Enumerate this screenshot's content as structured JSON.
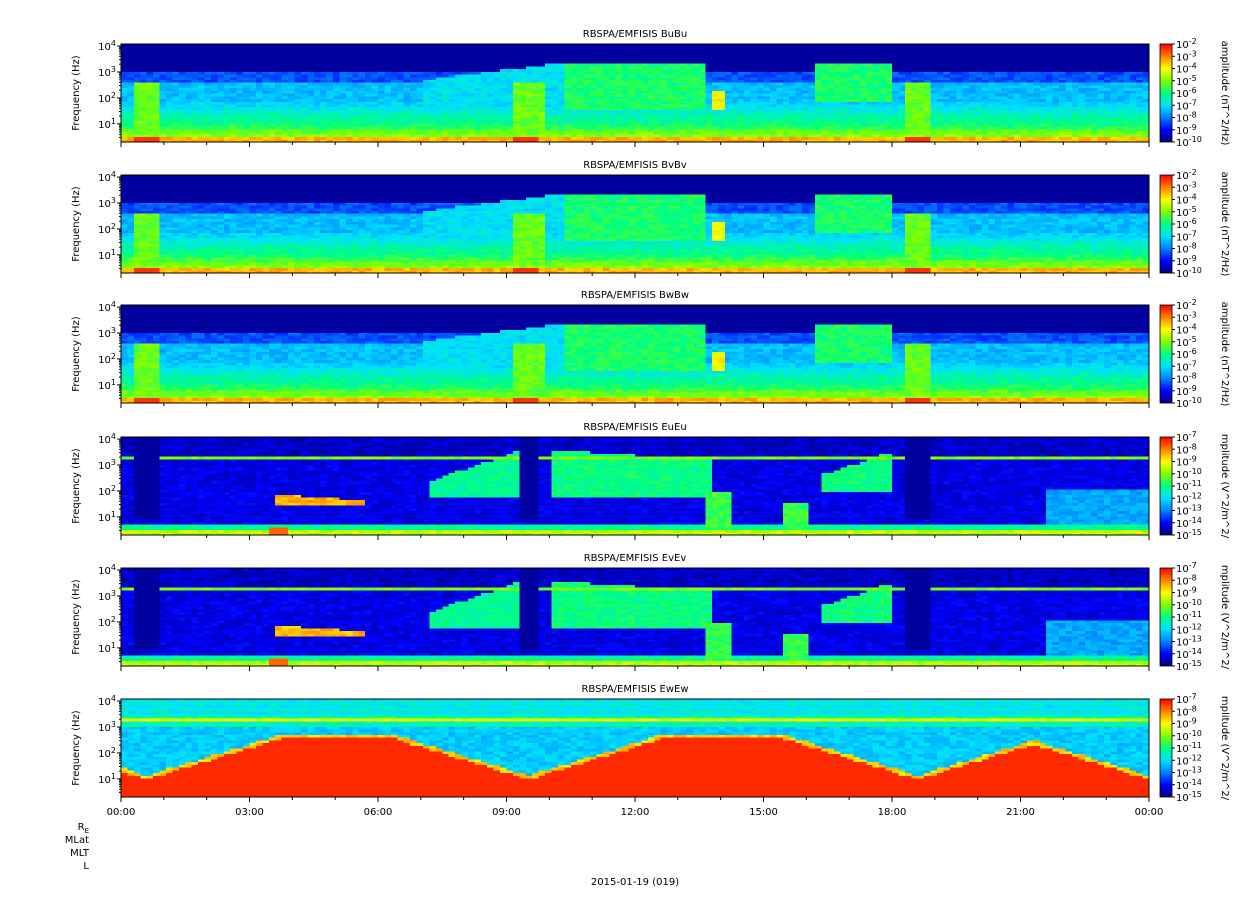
{
  "chart_data": {
    "type": "heatmap",
    "date_label": "2015-01-19 (019)",
    "x_axis": {
      "ticks": [
        "00:00",
        "03:00",
        "06:00",
        "09:00",
        "12:00",
        "15:00",
        "18:00",
        "21:00",
        "00:00"
      ],
      "range_hours": [
        0,
        24
      ]
    },
    "ephemeris_labels": [
      "RE",
      "MLat",
      "MLT",
      "L"
    ],
    "colormap": [
      "#000080",
      "#0000ff",
      "#0080ff",
      "#00e0ff",
      "#00ff80",
      "#80ff00",
      "#ffff00",
      "#ff8000",
      "#ff0000"
    ],
    "panels": [
      {
        "title": "RBSPA/EMFISIS  BuBu",
        "ylabel": "Frequency (Hz)",
        "yscale": "log",
        "ylim": [
          2,
          12000
        ],
        "yticks": [
          "10^1",
          "10^2",
          "10^3",
          "10^4"
        ],
        "colorbar_label": "amplitude (nT^2/Hz)",
        "colorbar_ticks": [
          "10^-2",
          "10^-3",
          "10^-4",
          "10^-5",
          "10^-6",
          "10^-7",
          "10^-8",
          "10^-9",
          "10^-10"
        ],
        "kind": "B"
      },
      {
        "title": "RBSPA/EMFISIS  BvBv",
        "ylabel": "Frequency (Hz)",
        "yscale": "log",
        "ylim": [
          2,
          12000
        ],
        "yticks": [
          "10^1",
          "10^2",
          "10^3",
          "10^4"
        ],
        "colorbar_label": "amplitude (nT^2/Hz)",
        "colorbar_ticks": [
          "10^-2",
          "10^-3",
          "10^-4",
          "10^-5",
          "10^-6",
          "10^-7",
          "10^-8",
          "10^-9",
          "10^-10"
        ],
        "kind": "B"
      },
      {
        "title": "RBSPA/EMFISIS  BwBw",
        "ylabel": "Frequency (Hz)",
        "yscale": "log",
        "ylim": [
          2,
          12000
        ],
        "yticks": [
          "10^1",
          "10^2",
          "10^3",
          "10^4"
        ],
        "colorbar_label": "amplitude (nT^2/Hz)",
        "colorbar_ticks": [
          "10^-2",
          "10^-3",
          "10^-4",
          "10^-5",
          "10^-6",
          "10^-7",
          "10^-8",
          "10^-9",
          "10^-10"
        ],
        "kind": "B"
      },
      {
        "title": "RBSPA/EMFISIS  EuEu",
        "ylabel": "Frequency (Hz)",
        "yscale": "log",
        "ylim": [
          2,
          12000
        ],
        "yticks": [
          "10^1",
          "10^2",
          "10^3",
          "10^4"
        ],
        "colorbar_label": "mplitude (V^2/m^2/",
        "colorbar_ticks": [
          "10^-7",
          "10^-8",
          "10^-9",
          "10^-10",
          "10^-11",
          "10^-12",
          "10^-13",
          "10^-14",
          "10^-15"
        ],
        "kind": "E"
      },
      {
        "title": "RBSPA/EMFISIS  EvEv",
        "ylabel": "Frequency (Hz)",
        "yscale": "log",
        "ylim": [
          2,
          12000
        ],
        "yticks": [
          "10^1",
          "10^2",
          "10^3",
          "10^4"
        ],
        "colorbar_label": "mplitude (V^2/m^2/",
        "colorbar_ticks": [
          "10^-7",
          "10^-8",
          "10^-9",
          "10^-10",
          "10^-11",
          "10^-12",
          "10^-13",
          "10^-14",
          "10^-15"
        ],
        "kind": "E"
      },
      {
        "title": "RBSPA/EMFISIS  EwEw",
        "ylabel": "Frequency (Hz)",
        "yscale": "log",
        "ylim": [
          2,
          12000
        ],
        "yticks": [
          "10^1",
          "10^2",
          "10^3",
          "10^4"
        ],
        "colorbar_label": "mplitude (V^2/m^2/",
        "colorbar_ticks": [
          "10^-7",
          "10^-8",
          "10^-9",
          "10^-10",
          "10^-11",
          "10^-12",
          "10^-13",
          "10^-14",
          "10^-15"
        ],
        "kind": "EW"
      }
    ]
  }
}
